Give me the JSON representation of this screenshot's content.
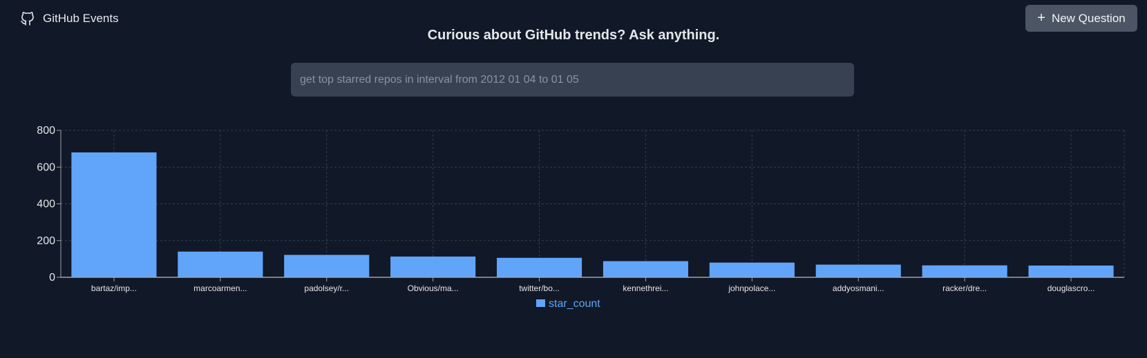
{
  "brand": {
    "name": "GitHub Events",
    "icon": "github-icon"
  },
  "header": {
    "new_question_label": "New Question",
    "new_question_icon": "plus-icon"
  },
  "headline": "Curious about GitHub trends? Ask anything.",
  "search": {
    "placeholder": "get top starred repos in interval from 2012 01 04 to 01 05"
  },
  "colors": {
    "background": "#111827",
    "bar": "#60a5fa",
    "button": "#4b5563",
    "input": "#374151",
    "grid": "#334155",
    "text": "#e5e7eb"
  },
  "chart_data": {
    "type": "bar",
    "categories": [
      "bartaz/imp...",
      "marcoarmen...",
      "padolsey/r...",
      "Obvious/ma...",
      "twitter/bo...",
      "kennethrei...",
      "johnpolace...",
      "addyosmani...",
      "racker/dre...",
      "douglascro..."
    ],
    "series": [
      {
        "name": "star_count",
        "values": [
          680,
          140,
          122,
          113,
          106,
          88,
          80,
          69,
          65,
          64
        ]
      }
    ],
    "ylim": [
      0,
      800
    ],
    "yticks": [
      0,
      200,
      400,
      600,
      800
    ],
    "grid": true,
    "legend": "bottom-center"
  }
}
